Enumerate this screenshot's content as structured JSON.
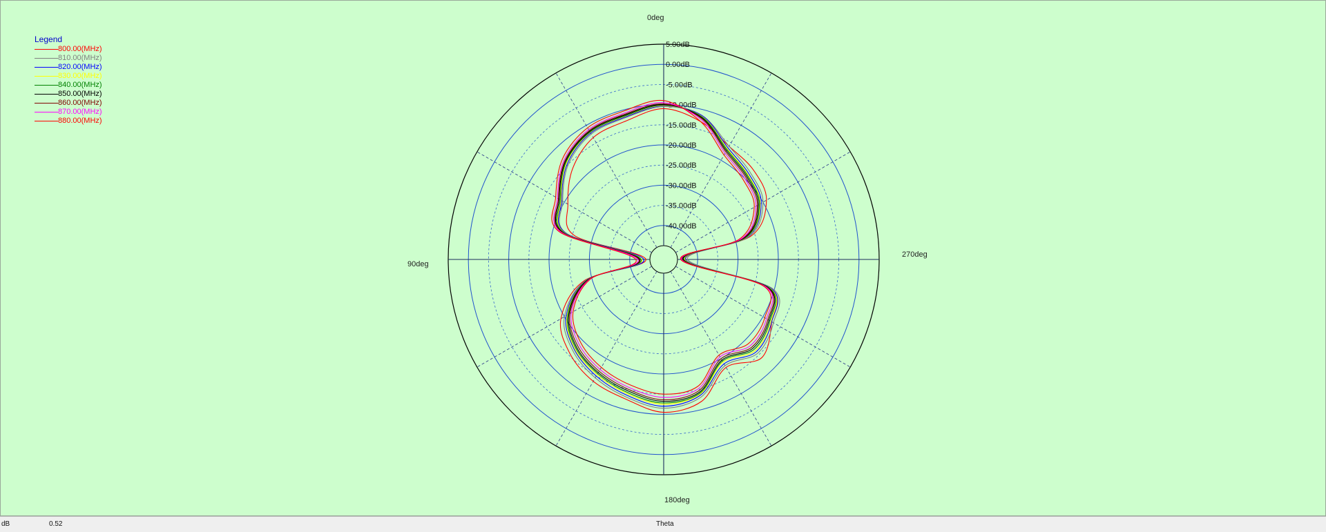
{
  "chart_data": {
    "type": "polar-line",
    "legend_title": "Legend",
    "legend_placement": "top-left",
    "angle_labels": [
      "0deg",
      "90deg",
      "180deg",
      "270deg"
    ],
    "angle_direction": "counterclockwise",
    "rlim": [
      -45,
      5
    ],
    "r_ticks": [
      5,
      0,
      -5,
      -10,
      -15,
      -20,
      -25,
      -30,
      -35,
      -40
    ],
    "r_tick_labels": [
      "5.00dB",
      "0.00dB",
      "-5.00dB",
      "-10.00dB",
      "-15.00dB",
      "-20.00dB",
      "-25.00dB",
      "-30.00dB",
      "-35.00dB",
      "-40.00dB"
    ],
    "theta_deg": [
      0,
      15,
      30,
      45,
      60,
      75,
      90,
      105,
      120,
      135,
      150,
      165,
      180,
      195,
      210,
      225,
      240,
      255,
      270,
      285,
      300,
      315,
      330,
      345
    ],
    "series": [
      {
        "name": "800.00(MHz)",
        "color": "#ff0000",
        "values": [
          -11.0,
          -12.8,
          -13.5,
          -16.5,
          -21.0,
          -25.5,
          -44.0,
          -28.0,
          -19.0,
          -15.5,
          -13.5,
          -12.5,
          -10.5,
          -12.0,
          -17.5,
          -14.0,
          -17.5,
          -21.0,
          -43.0,
          -26.0,
          -19.0,
          -17.0,
          -16.0,
          -13.0
        ]
      },
      {
        "name": "810.00(MHz)",
        "color": "#808080",
        "values": [
          -10.5,
          -12.0,
          -12.5,
          -15.0,
          -19.5,
          -23.5,
          -43.5,
          -28.5,
          -20.0,
          -16.5,
          -14.5,
          -13.0,
          -11.5,
          -13.0,
          -18.0,
          -15.5,
          -17.0,
          -20.5,
          -42.5,
          -26.5,
          -20.0,
          -18.0,
          -16.0,
          -11.5
        ]
      },
      {
        "name": "820.00(MHz)",
        "color": "#0000ff",
        "values": [
          -10.3,
          -11.8,
          -12.2,
          -14.7,
          -19.2,
          -23.3,
          -43.5,
          -28.7,
          -20.5,
          -17.0,
          -15.0,
          -13.5,
          -12.0,
          -13.5,
          -18.5,
          -16.0,
          -17.5,
          -21.0,
          -43.0,
          -27.0,
          -20.5,
          -18.5,
          -16.5,
          -11.5
        ]
      },
      {
        "name": "830.00(MHz)",
        "color": "#ffff00",
        "values": [
          -10.2,
          -11.6,
          -12.0,
          -14.4,
          -19.0,
          -23.0,
          -43.0,
          -28.8,
          -20.8,
          -17.2,
          -15.4,
          -13.9,
          -12.5,
          -13.8,
          -19.0,
          -16.4,
          -17.7,
          -21.3,
          -43.2,
          -27.2,
          -20.8,
          -18.8,
          -16.8,
          -11.7
        ]
      },
      {
        "name": "840.00(MHz)",
        "color": "#008000",
        "values": [
          -10.1,
          -11.5,
          -11.9,
          -14.2,
          -18.8,
          -22.8,
          -42.8,
          -28.9,
          -21.0,
          -17.5,
          -15.7,
          -14.2,
          -12.8,
          -14.0,
          -19.3,
          -16.8,
          -18.0,
          -21.5,
          -43.4,
          -27.4,
          -21.0,
          -19.0,
          -17.0,
          -11.8
        ]
      },
      {
        "name": "850.00(MHz)",
        "color": "#000000",
        "values": [
          -10.0,
          -11.3,
          -11.7,
          -14.0,
          -18.5,
          -22.5,
          -42.5,
          -29.0,
          -21.3,
          -17.8,
          -16.0,
          -14.6,
          -13.2,
          -14.3,
          -19.6,
          -17.2,
          -18.3,
          -21.8,
          -43.6,
          -27.7,
          -21.3,
          -19.3,
          -17.3,
          -12.0
        ]
      },
      {
        "name": "860.00(MHz)",
        "color": "#800000",
        "values": [
          -9.8,
          -11.1,
          -11.5,
          -13.8,
          -18.3,
          -22.3,
          -42.3,
          -29.2,
          -21.6,
          -18.2,
          -16.4,
          -15.0,
          -13.6,
          -14.7,
          -20.0,
          -17.6,
          -18.6,
          -22.0,
          -43.8,
          -28.0,
          -21.6,
          -19.6,
          -17.6,
          -12.2
        ]
      },
      {
        "name": "870.00(MHz)",
        "color": "#ff00ff",
        "values": [
          -9.5,
          -10.8,
          -11.2,
          -13.5,
          -18.0,
          -22.0,
          -42.0,
          -29.4,
          -22.0,
          -18.7,
          -16.9,
          -15.5,
          -14.2,
          -15.2,
          -20.5,
          -18.1,
          -19.0,
          -22.3,
          -44.0,
          -28.4,
          -22.0,
          -20.0,
          -18.0,
          -12.5
        ]
      },
      {
        "name": "880.00(MHz)",
        "color": "#ff0000",
        "values": [
          -9.0,
          -10.3,
          -10.7,
          -13.0,
          -17.5,
          -21.5,
          -41.5,
          -29.6,
          -22.5,
          -19.3,
          -17.5,
          -16.2,
          -15.0,
          -15.8,
          -21.0,
          -18.8,
          -19.5,
          -22.7,
          -44.2,
          -29.0,
          -22.5,
          -20.5,
          -18.5,
          -13.0
        ]
      }
    ]
  },
  "status_bar": {
    "unit_label": "dB",
    "value": "0.52",
    "axis_name": "Theta"
  }
}
